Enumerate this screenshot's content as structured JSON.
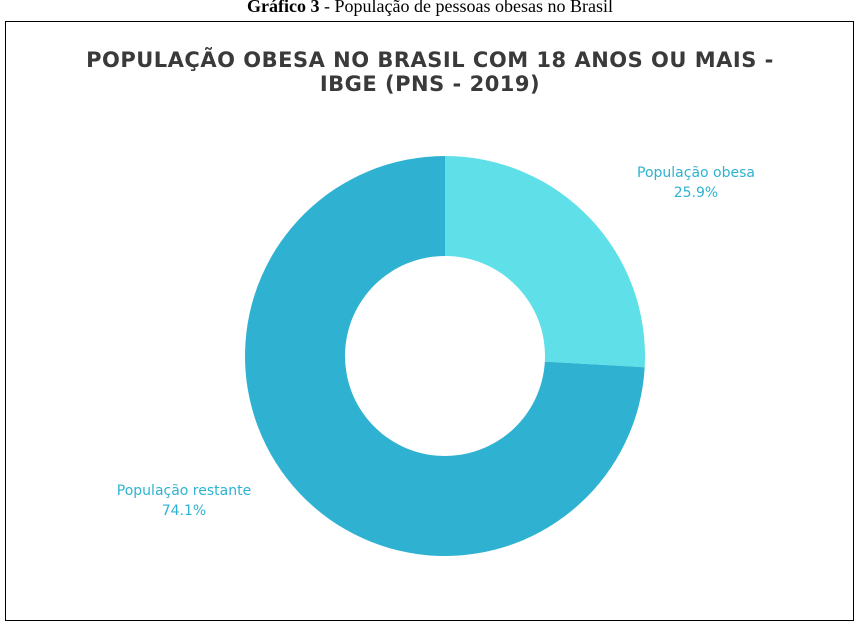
{
  "caption": {
    "prefix": "Gráfico 3",
    "text": " - População de pessoas obesas no Brasil"
  },
  "chart_data": {
    "type": "pie",
    "style": "donut",
    "title": "POPULAÇÃO OBESA NO BRASIL  COM 18 ANOS OU MAIS - IBGE  (PNS - 2019)",
    "title_lines": [
      "POPULAÇÃO OBESA NO BRASIL  COM 18 ANOS OU MAIS -",
      "IBGE  (PNS - 2019)"
    ],
    "slices": [
      {
        "label": "População obesa",
        "value": 25.9,
        "display": "25.9%",
        "color": "#5fe0e8"
      },
      {
        "label": "População restante",
        "value": 74.1,
        "display": "74.1%",
        "color": "#2fb2d2"
      }
    ],
    "label_color": "#2fb2d2",
    "legend": "none"
  }
}
